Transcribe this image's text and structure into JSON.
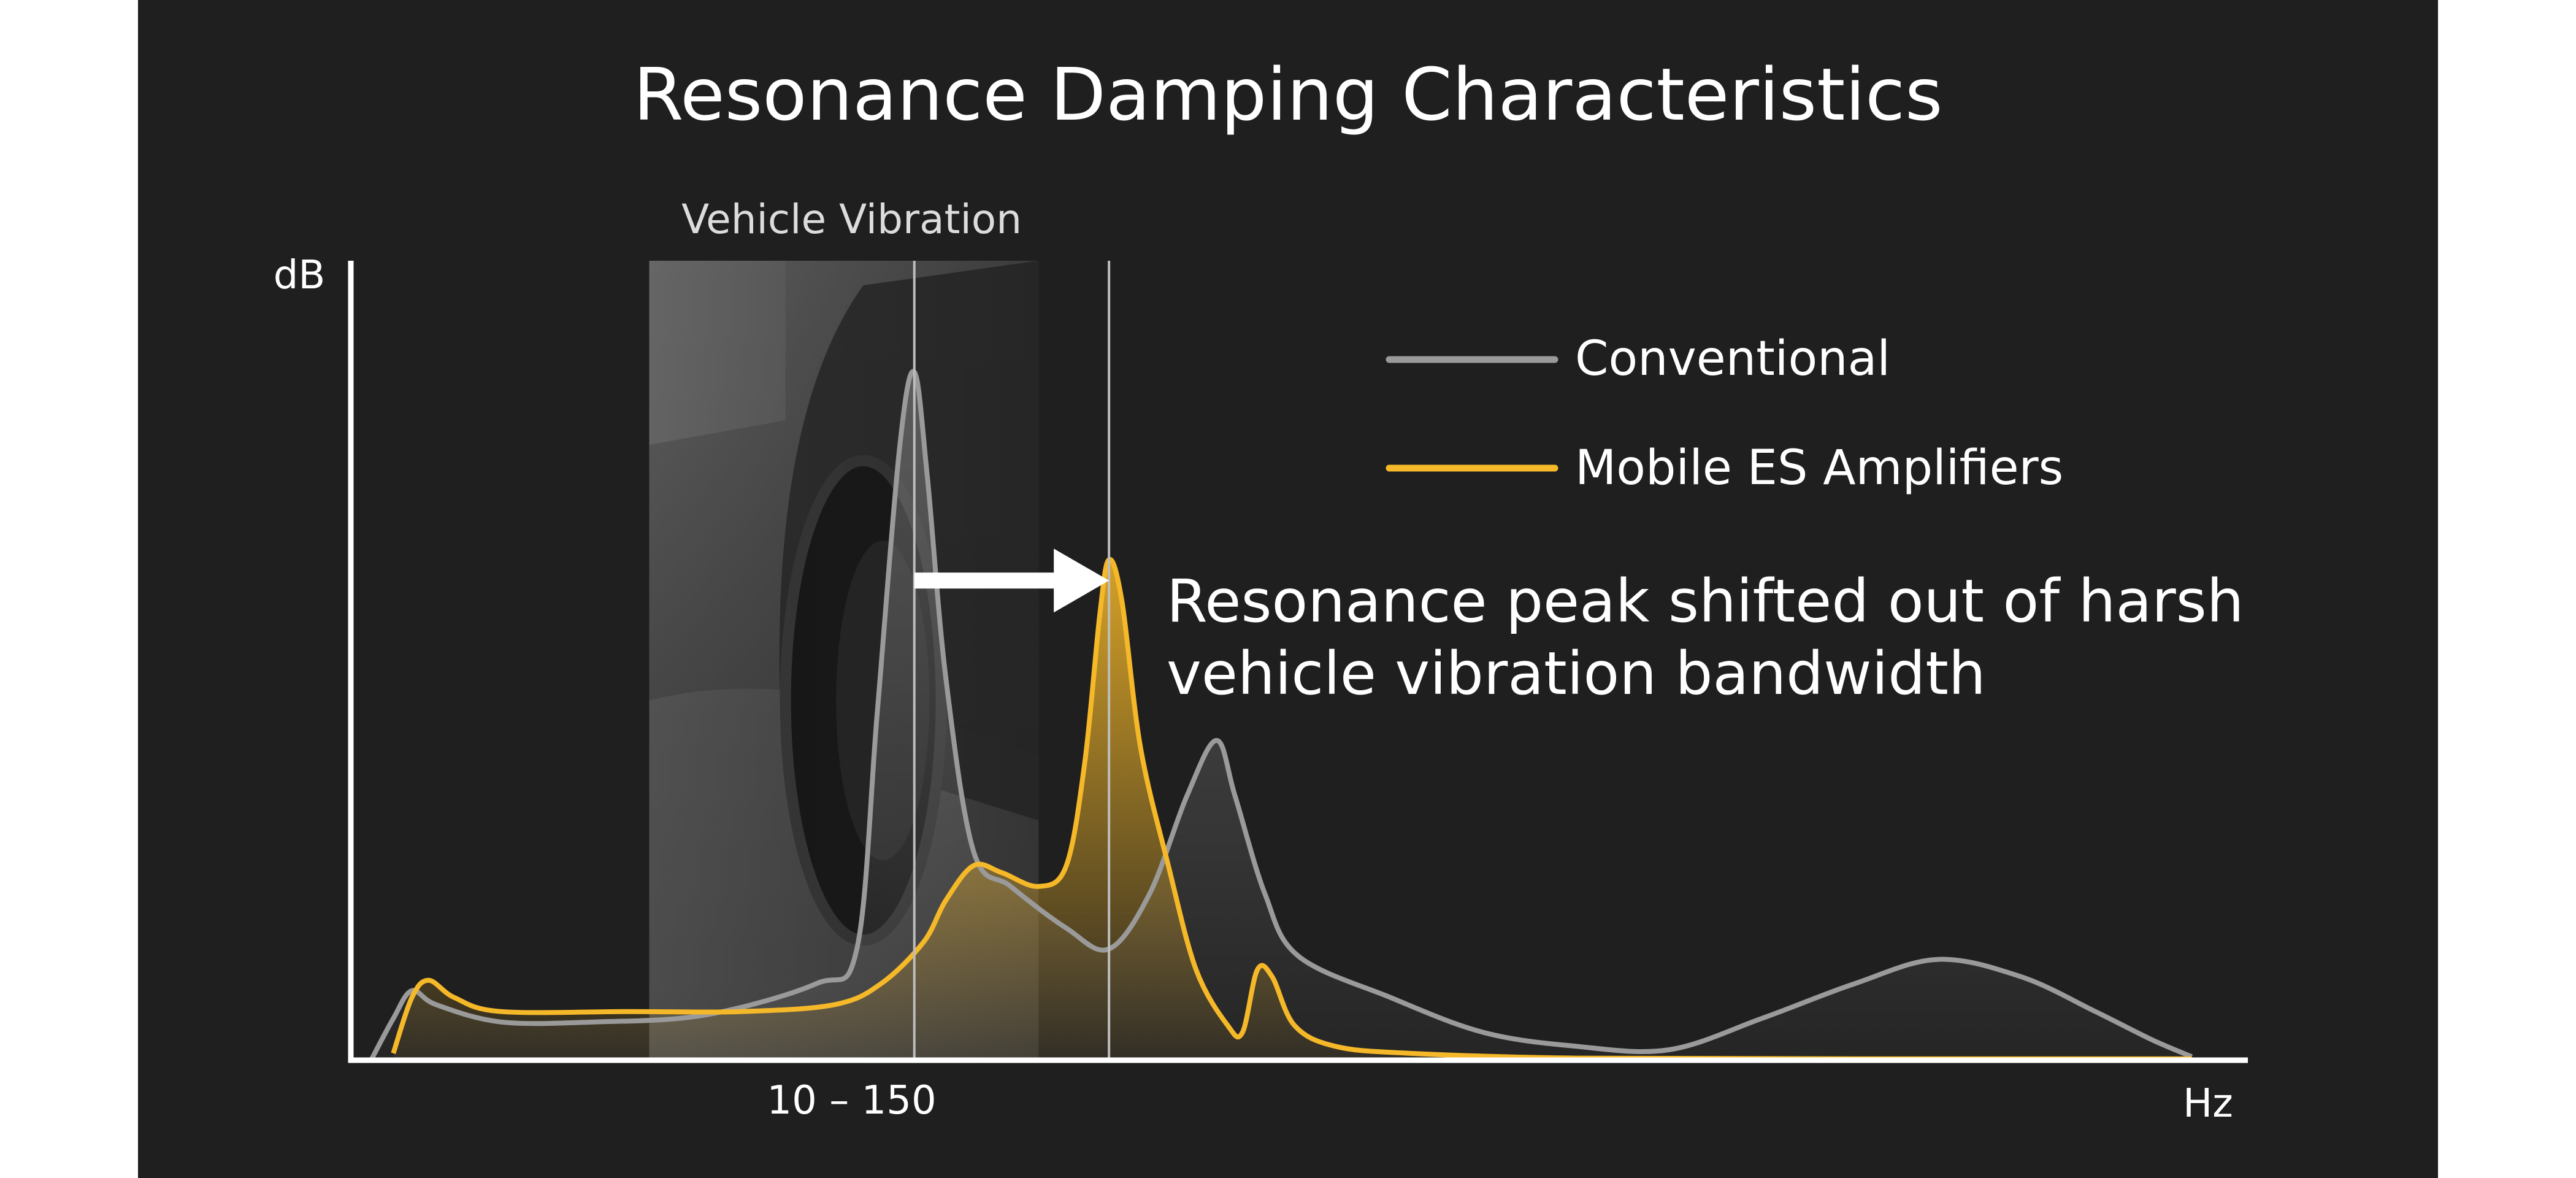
{
  "page": {
    "background_color": "#ffffff",
    "panel_color": "#1f1f1f"
  },
  "chart_data": {
    "type": "area",
    "title": "Resonance Damping Characteristics",
    "ylabel": "dB",
    "xlabel": "Hz",
    "x_tick_labels": [
      "10 – 150"
    ],
    "ylim": [
      0,
      100
    ],
    "grid": false,
    "legend_position": "top-right",
    "highlight_band": {
      "label": "Vehicle Vibration",
      "description": "photo of a car wheel on a road, shown as background of the band",
      "x_range": [
        0.15,
        0.36
      ]
    },
    "markers": [
      {
        "name": "conventional-peak-line",
        "x": 0.293
      },
      {
        "name": "shifted-peak-line",
        "x": 0.398
      }
    ],
    "shift_arrow": {
      "from_x": 0.293,
      "to_x": 0.398,
      "y": 69
    },
    "annotation": {
      "lines": [
        "Resonance peak shifted out of harsh",
        "vehicle vibration bandwidth"
      ]
    },
    "series": [
      {
        "name": "Conventional",
        "color": "#9a9a9a",
        "points": [
          [
            0.0,
            0
          ],
          [
            0.012,
            6
          ],
          [
            0.022,
            10
          ],
          [
            0.035,
            8
          ],
          [
            0.07,
            5.5
          ],
          [
            0.12,
            5.5
          ],
          [
            0.18,
            6.5
          ],
          [
            0.24,
            11
          ],
          [
            0.262,
            16
          ],
          [
            0.273,
            50
          ],
          [
            0.285,
            88
          ],
          [
            0.293,
            99
          ],
          [
            0.3,
            84
          ],
          [
            0.31,
            55
          ],
          [
            0.325,
            30
          ],
          [
            0.345,
            25
          ],
          [
            0.375,
            19
          ],
          [
            0.398,
            16
          ],
          [
            0.42,
            24
          ],
          [
            0.44,
            38
          ],
          [
            0.456,
            46
          ],
          [
            0.466,
            38
          ],
          [
            0.482,
            24
          ],
          [
            0.5,
            15
          ],
          [
            0.55,
            9
          ],
          [
            0.6,
            4
          ],
          [
            0.65,
            2
          ],
          [
            0.7,
            1.5
          ],
          [
            0.75,
            6
          ],
          [
            0.8,
            11
          ],
          [
            0.845,
            14.5
          ],
          [
            0.89,
            12
          ],
          [
            0.93,
            7
          ],
          [
            0.96,
            3
          ],
          [
            0.982,
            0.5
          ]
        ]
      },
      {
        "name": "Mobile ES Amplifiers",
        "color": "#f5b829",
        "points": [
          [
            0.012,
            1
          ],
          [
            0.022,
            9
          ],
          [
            0.031,
            11.5
          ],
          [
            0.045,
            9
          ],
          [
            0.07,
            7
          ],
          [
            0.14,
            7
          ],
          [
            0.2,
            7
          ],
          [
            0.25,
            8
          ],
          [
            0.275,
            11
          ],
          [
            0.298,
            17
          ],
          [
            0.31,
            23
          ],
          [
            0.325,
            28
          ],
          [
            0.34,
            27
          ],
          [
            0.36,
            25
          ],
          [
            0.375,
            28
          ],
          [
            0.385,
            43
          ],
          [
            0.393,
            64
          ],
          [
            0.398,
            72
          ],
          [
            0.405,
            66
          ],
          [
            0.415,
            45
          ],
          [
            0.43,
            28
          ],
          [
            0.445,
            13
          ],
          [
            0.462,
            5
          ],
          [
            0.47,
            4
          ],
          [
            0.478,
            13
          ],
          [
            0.486,
            12
          ],
          [
            0.498,
            5
          ],
          [
            0.52,
            2
          ],
          [
            0.56,
            1
          ],
          [
            0.65,
            0.3
          ],
          [
            0.8,
            0.2
          ],
          [
            0.982,
            0.2
          ]
        ]
      }
    ]
  }
}
